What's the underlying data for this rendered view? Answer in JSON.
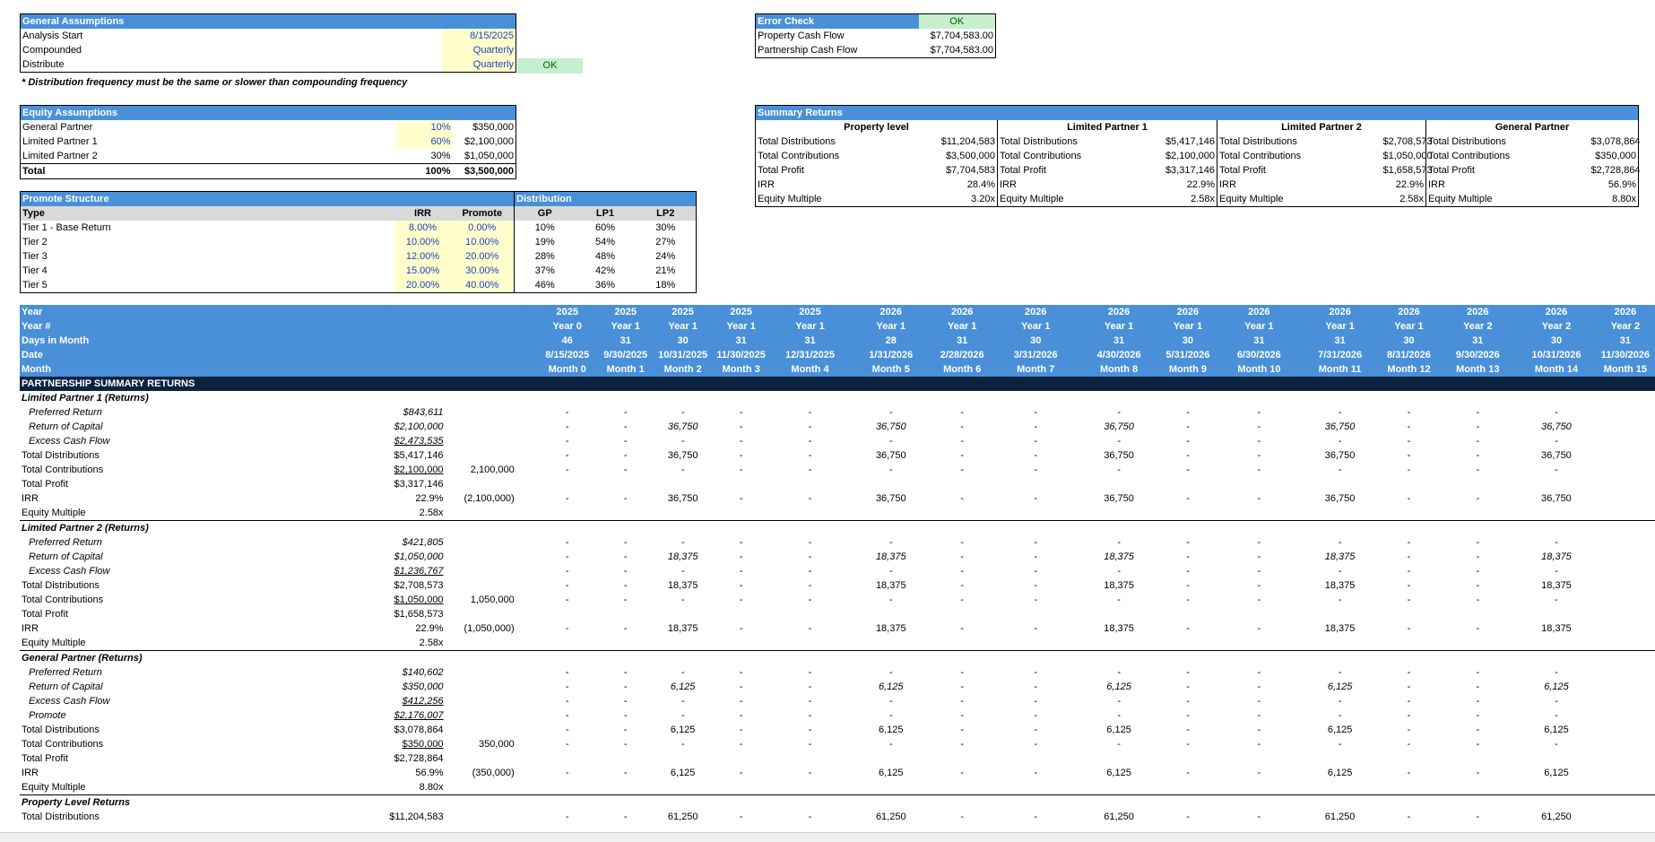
{
  "general": {
    "title": "General Assumptions",
    "rows": [
      {
        "label": "Analysis Start",
        "value": "8/15/2025"
      },
      {
        "label": "Compounded",
        "value": "Quarterly"
      },
      {
        "label": "Distribute",
        "value": "Quarterly",
        "status": "OK"
      }
    ],
    "note": "* Distribution frequency must be the same or slower than compounding frequency"
  },
  "error_check": {
    "title": "Error Check",
    "status": "OK",
    "rows": [
      {
        "label": "Property Cash Flow",
        "value": "$7,704,583.00"
      },
      {
        "label": "Partnership Cash Flow",
        "value": "$7,704,583.00"
      }
    ]
  },
  "equity": {
    "title": "Equity Assumptions",
    "rows": [
      {
        "label": "General Partner",
        "pct": "10%",
        "amount": "$350,000"
      },
      {
        "label": "Limited Partner 1",
        "pct": "60%",
        "amount": "$2,100,000"
      },
      {
        "label": "Limited Partner 2",
        "pct": "30%",
        "amount": "$1,050,000"
      }
    ],
    "total": {
      "label": "Total",
      "pct": "100%",
      "amount": "$3,500,000"
    }
  },
  "summary": {
    "title": "Summary Returns",
    "groups": [
      "Property level",
      "Limited Partner 1",
      "Limited Partner 2",
      "General Partner"
    ],
    "labels": [
      "Total Distributions",
      "Total Contributions",
      "Total Profit",
      "IRR",
      "Equity Multiple"
    ],
    "values": [
      [
        "$11,204,583",
        "$3,500,000",
        "$7,704,583",
        "28.4%",
        "3.20x"
      ],
      [
        "$5,417,146",
        "$2,100,000",
        "$3,317,146",
        "22.9%",
        "2.58x"
      ],
      [
        "$2,708,573",
        "$1,050,000",
        "$1,658,573",
        "22.9%",
        "2.58x"
      ],
      [
        "$3,078,864",
        "$350,000",
        "$2,728,864",
        "56.9%",
        "8.80x"
      ]
    ]
  },
  "promote": {
    "title": "Promote Structure",
    "dist_title": "Distribution",
    "headers": [
      "Type",
      "IRR",
      "Promote",
      "GP",
      "LP1",
      "LP2"
    ],
    "rows": [
      [
        "Tier 1 - Base Return",
        "8.00%",
        "0.00%",
        "10%",
        "60%",
        "30%"
      ],
      [
        "Tier 2",
        "10.00%",
        "10.00%",
        "19%",
        "54%",
        "27%"
      ],
      [
        "Tier 3",
        "12.00%",
        "20.00%",
        "28%",
        "48%",
        "24%"
      ],
      [
        "Tier 4",
        "15.00%",
        "30.00%",
        "37%",
        "42%",
        "21%"
      ],
      [
        "Tier 5",
        "20.00%",
        "40.00%",
        "46%",
        "36%",
        "18%"
      ]
    ]
  },
  "timeline": {
    "labels": [
      "Year",
      "Year #",
      "Days in Month",
      "Date",
      "Month"
    ],
    "columns": [
      [
        "2025",
        "Year 0",
        "46",
        "8/15/2025",
        "Month 0"
      ],
      [
        "2025",
        "Year 1",
        "31",
        "9/30/2025",
        "Month 1"
      ],
      [
        "2025",
        "Year 1",
        "30",
        "10/31/2025",
        "Month 2"
      ],
      [
        "2025",
        "Year 1",
        "31",
        "11/30/2025",
        "Month 3"
      ],
      [
        "2025",
        "Year 1",
        "31",
        "12/31/2025",
        "Month 4"
      ],
      [
        "2026",
        "Year 1",
        "28",
        "1/31/2026",
        "Month 5"
      ],
      [
        "2026",
        "Year 1",
        "31",
        "2/28/2026",
        "Month 6"
      ],
      [
        "2026",
        "Year 1",
        "30",
        "3/31/2026",
        "Month 7"
      ],
      [
        "2026",
        "Year 1",
        "31",
        "4/30/2026",
        "Month 8"
      ],
      [
        "2026",
        "Year 1",
        "30",
        "5/31/2026",
        "Month 9"
      ],
      [
        "2026",
        "Year 1",
        "31",
        "6/30/2026",
        "Month 10"
      ],
      [
        "2026",
        "Year 1",
        "31",
        "7/31/2026",
        "Month 11"
      ],
      [
        "2026",
        "Year 1",
        "30",
        "8/31/2026",
        "Month 12"
      ],
      [
        "2026",
        "Year 2",
        "31",
        "9/30/2026",
        "Month 13"
      ],
      [
        "2026",
        "Year 2",
        "30",
        "10/31/2026",
        "Month 14"
      ],
      [
        "2026",
        "Year 2",
        "31",
        "11/30/2026",
        "Month 15"
      ]
    ]
  },
  "partnership": {
    "title": "PARTNERSHIP SUMMARY RETURNS",
    "sections": [
      {
        "title": "Limited Partner 1 (Returns)",
        "rows": [
          {
            "label": "Preferred Return",
            "total": "$843,611",
            "m0": "",
            "q": "-"
          },
          {
            "label": "Return of Capital",
            "total": "$2,100,000",
            "m0": "",
            "q": "36,750"
          },
          {
            "label": "Excess Cash Flow",
            "total": "$2,473,535",
            "m0": "",
            "q": "-"
          },
          {
            "label": "Total Distributions",
            "total": "$5,417,146",
            "m0": "",
            "q": "36,750"
          },
          {
            "label": "Total Contributions",
            "total": "$2,100,000",
            "m0": "2,100,000",
            "q": "-"
          },
          {
            "label": "Total Profit",
            "total": "$3,317,146",
            "m0": "",
            "q": ""
          },
          {
            "label": "IRR",
            "total": "22.9%",
            "m0": "(2,100,000)",
            "q": "36,750"
          },
          {
            "label": "Equity Multiple",
            "total": "2.58x",
            "m0": "",
            "q": ""
          }
        ]
      },
      {
        "title": "Limited Partner 2 (Returns)",
        "rows": [
          {
            "label": "Preferred Return",
            "total": "$421,805",
            "m0": "",
            "q": "-"
          },
          {
            "label": "Return of Capital",
            "total": "$1,050,000",
            "m0": "",
            "q": "18,375"
          },
          {
            "label": "Excess Cash Flow",
            "total": "$1,236,767",
            "m0": "",
            "q": "-"
          },
          {
            "label": "Total Distributions",
            "total": "$2,708,573",
            "m0": "",
            "q": "18,375"
          },
          {
            "label": "Total Contributions",
            "total": "$1,050,000",
            "m0": "1,050,000",
            "q": "-"
          },
          {
            "label": "Total Profit",
            "total": "$1,658,573",
            "m0": "",
            "q": ""
          },
          {
            "label": "IRR",
            "total": "22.9%",
            "m0": "(1,050,000)",
            "q": "18,375"
          },
          {
            "label": "Equity Multiple",
            "total": "2.58x",
            "m0": "",
            "q": ""
          }
        ]
      },
      {
        "title": "General Partner (Returns)",
        "rows": [
          {
            "label": "Preferred Return",
            "total": "$140,602",
            "m0": "",
            "q": "-"
          },
          {
            "label": "Return of Capital",
            "total": "$350,000",
            "m0": "",
            "q": "6,125"
          },
          {
            "label": "Excess Cash Flow",
            "total": "$412,256",
            "m0": "",
            "q": "-"
          },
          {
            "label": "Promote",
            "total": "$2,176,007",
            "m0": "",
            "q": "-"
          },
          {
            "label": "Total Distributions",
            "total": "$3,078,864",
            "m0": "",
            "q": "6,125"
          },
          {
            "label": "Total Contributions",
            "total": "$350,000",
            "m0": "350,000",
            "q": "-"
          },
          {
            "label": "Total Profit",
            "total": "$2,728,864",
            "m0": "",
            "q": ""
          },
          {
            "label": "IRR",
            "total": "56.9%",
            "m0": "(350,000)",
            "q": "6,125"
          },
          {
            "label": "Equity Multiple",
            "total": "8.80x",
            "m0": "",
            "q": ""
          }
        ]
      },
      {
        "title": "Property Level Returns",
        "rows": [
          {
            "label": "Total Distributions",
            "total": "$11,204,583",
            "m0": "",
            "q": "61,250"
          }
        ]
      }
    ]
  }
}
